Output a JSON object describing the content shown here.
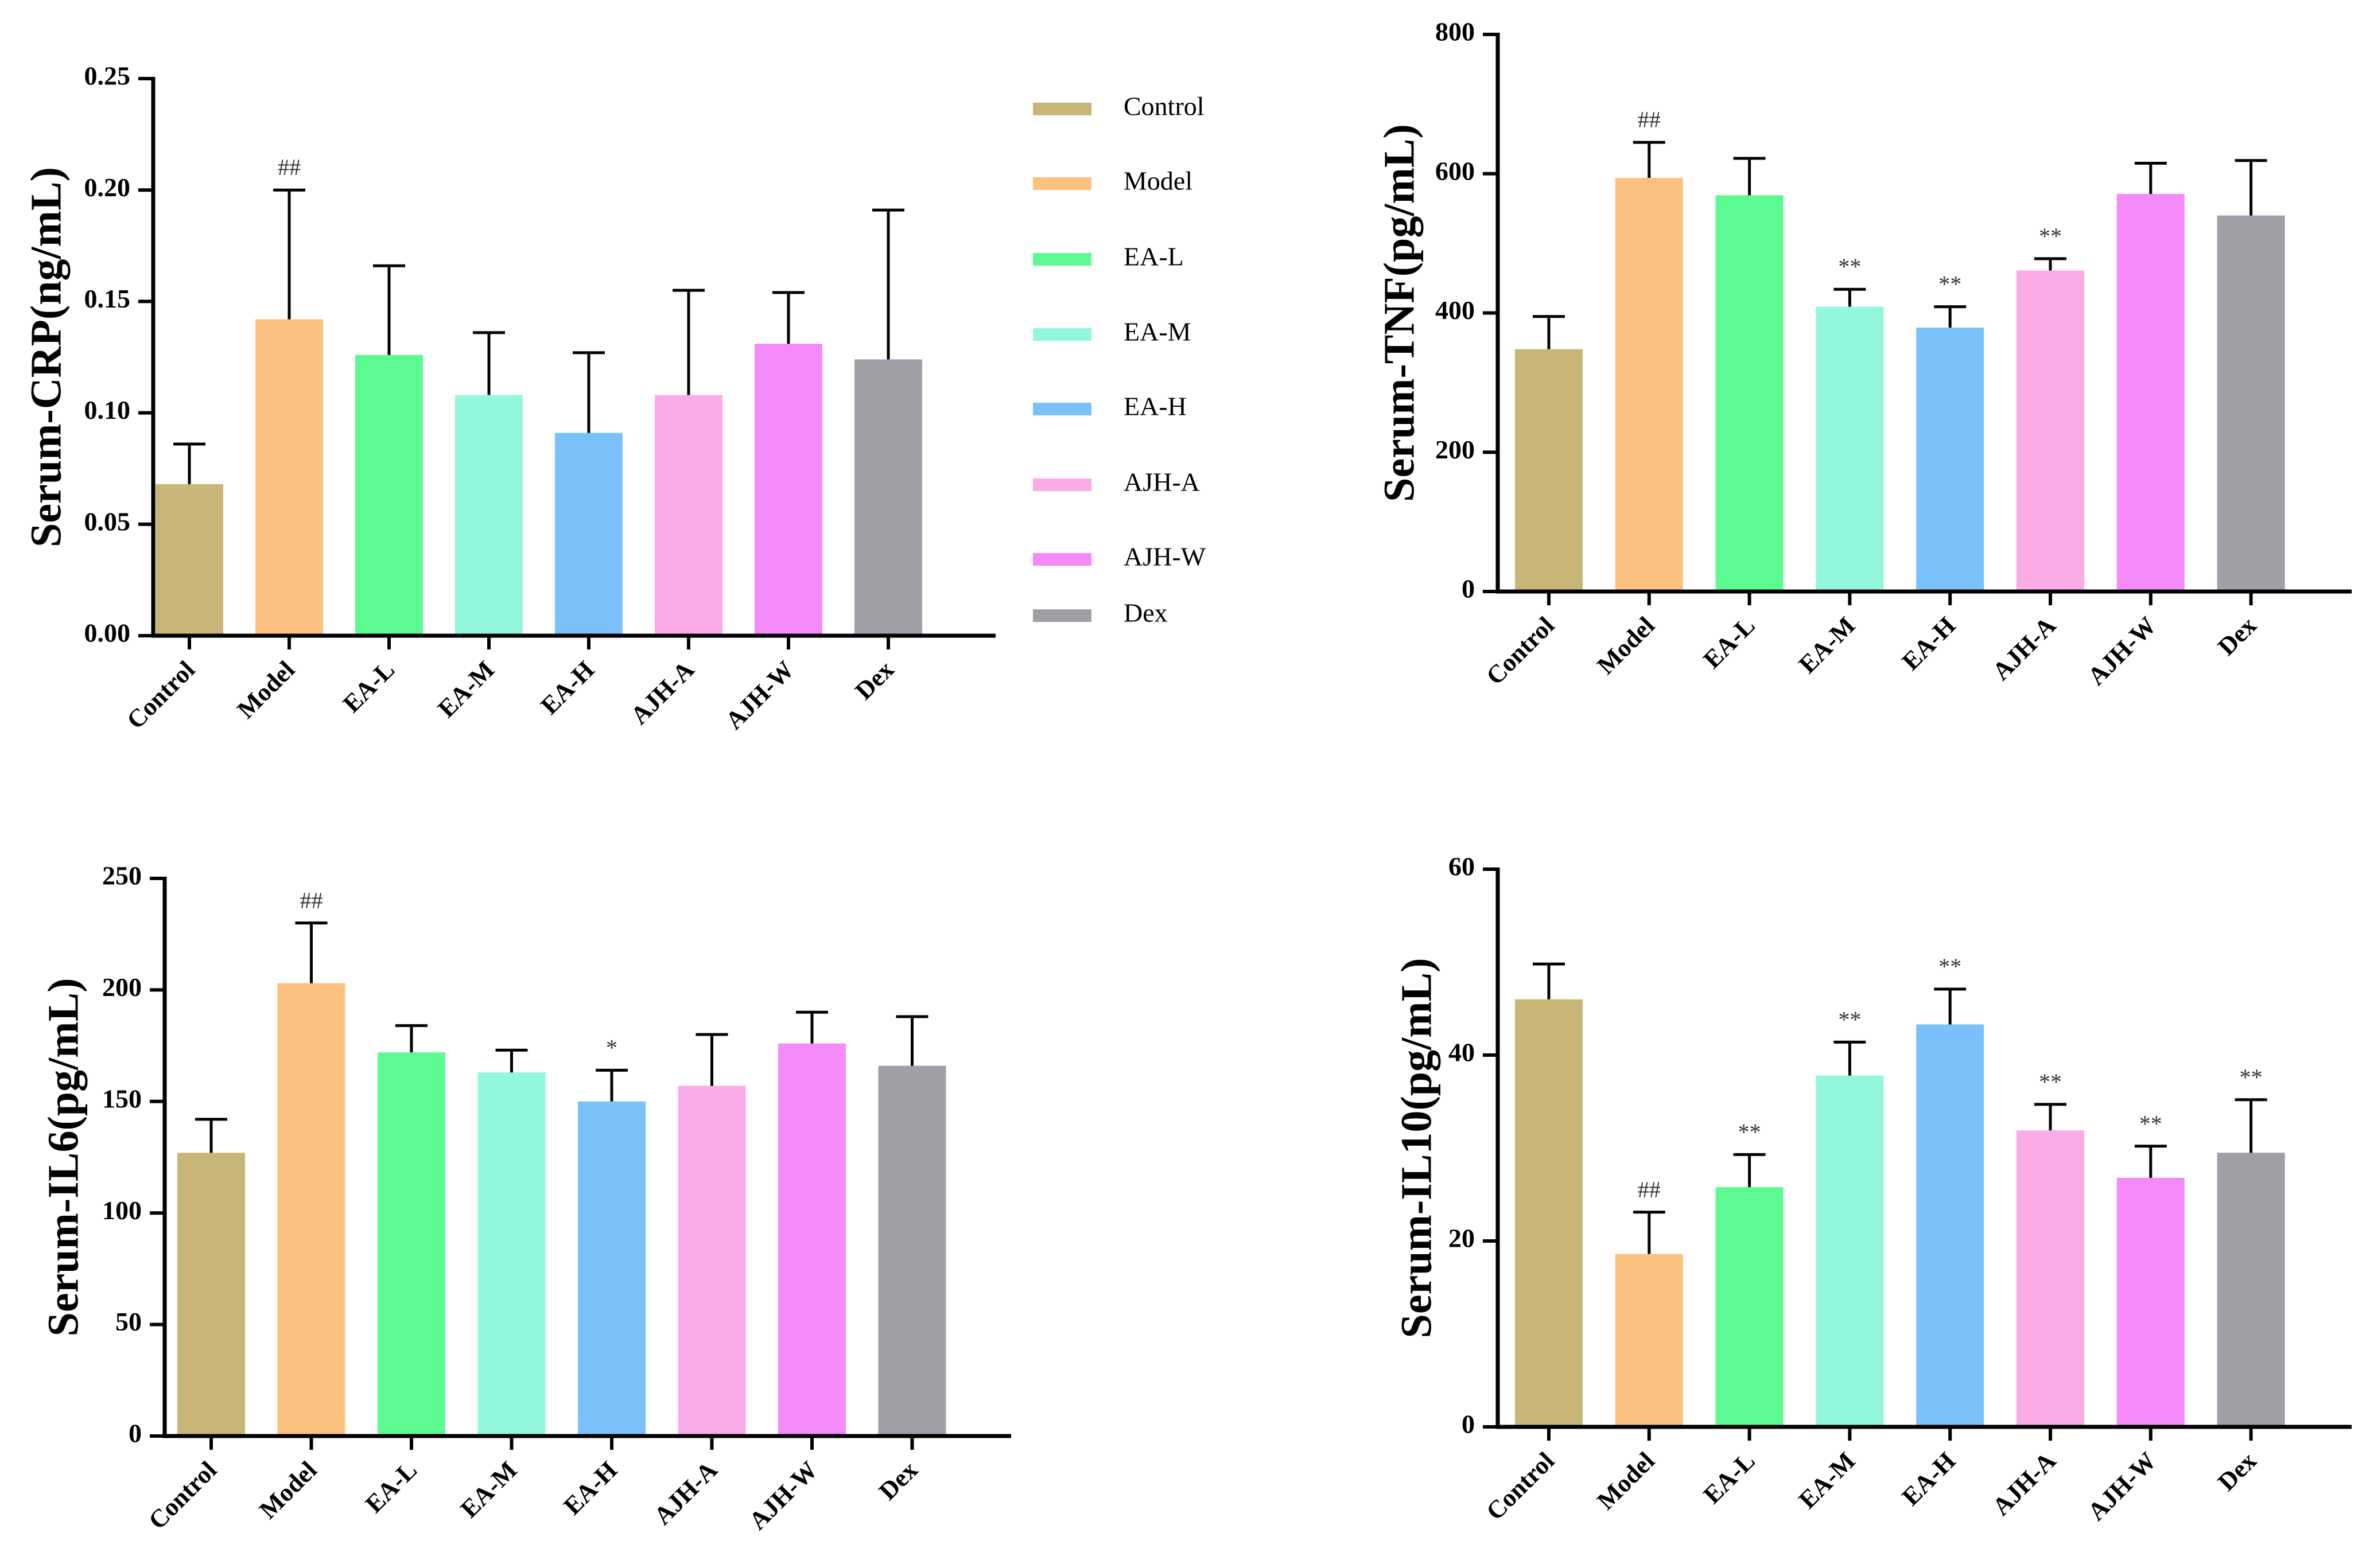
{
  "colors": {
    "Control": "#c8b678",
    "Model": "#fdc17f",
    "EA-L": "#5cfb92",
    "EA-M": "#93f7dd",
    "EA-H": "#7ac0fa",
    "AJH-A": "#fbace7",
    "AJH-W": "#f58afa",
    "Dex": "#a19fa6"
  },
  "legend": {
    "entries": [
      "Control",
      "Model",
      "EA-L",
      "EA-M",
      "EA-H",
      "AJH-A",
      "AJH-W",
      "Dex"
    ]
  },
  "chart_data": [
    {
      "id": "crp",
      "type": "bar",
      "ylabel": "Serum-CRP(ng/mL)",
      "ylim": [
        0,
        0.25
      ],
      "yticks": [
        "0.00",
        "0.05",
        "0.10",
        "0.15",
        "0.20",
        "0.25"
      ],
      "categories": [
        "Control",
        "Model",
        "EA-L",
        "EA-M",
        "EA-H",
        "AJH-A",
        "AJH-W",
        "Dex"
      ],
      "values": [
        0.068,
        0.142,
        0.126,
        0.108,
        0.091,
        0.108,
        0.131,
        0.124
      ],
      "errors": [
        0.018,
        0.058,
        0.04,
        0.028,
        0.036,
        0.047,
        0.023,
        0.067
      ],
      "annotations": [
        "",
        "##",
        "",
        "",
        "",
        "",
        "",
        ""
      ]
    },
    {
      "id": "tnf",
      "type": "bar",
      "ylabel": "Serum-TNF(pg/mL)",
      "ylim": [
        0,
        800
      ],
      "yticks": [
        "0",
        "200",
        "400",
        "600",
        "800"
      ],
      "categories": [
        "Control",
        "Model",
        "EA-L",
        "EA-M",
        "EA-H",
        "AJH-A",
        "AJH-W",
        "Dex"
      ],
      "values": [
        348,
        594,
        569,
        409,
        379,
        461,
        571,
        540
      ],
      "errors": [
        47,
        51,
        53,
        25,
        30,
        17,
        44,
        79
      ],
      "annotations": [
        "",
        "##",
        "",
        "**",
        "**",
        "**",
        "",
        ""
      ]
    },
    {
      "id": "il6",
      "type": "bar",
      "ylabel": "Serum-IL6(pg/mL)",
      "ylim": [
        0,
        250
      ],
      "yticks": [
        "0",
        "50",
        "100",
        "150",
        "200",
        "250"
      ],
      "categories": [
        "Control",
        "Model",
        "EA-L",
        "EA-M",
        "EA-H",
        "AJH-A",
        "AJH-W",
        "Dex"
      ],
      "values": [
        127,
        203,
        172,
        163,
        150,
        157,
        176,
        166
      ],
      "errors": [
        15,
        27,
        12,
        10,
        14,
        23,
        14,
        22
      ],
      "annotations": [
        "",
        "##",
        "",
        "",
        "*",
        "",
        "",
        ""
      ]
    },
    {
      "id": "il10",
      "type": "bar",
      "ylabel": "Serum-IL10(pg/mL)",
      "ylim": [
        0,
        60
      ],
      "yticks": [
        "0",
        "20",
        "40",
        "60"
      ],
      "categories": [
        "Control",
        "Model",
        "EA-L",
        "EA-M",
        "EA-H",
        "AJH-A",
        "AJH-W",
        "Dex"
      ],
      "values": [
        46.0,
        18.6,
        25.8,
        37.8,
        43.3,
        31.9,
        26.8,
        29.5
      ],
      "errors": [
        3.8,
        4.5,
        3.5,
        3.6,
        3.8,
        2.8,
        3.4,
        5.7
      ],
      "annotations": [
        "",
        "##",
        "**",
        "**",
        "**",
        "**",
        "**",
        "**"
      ]
    }
  ]
}
